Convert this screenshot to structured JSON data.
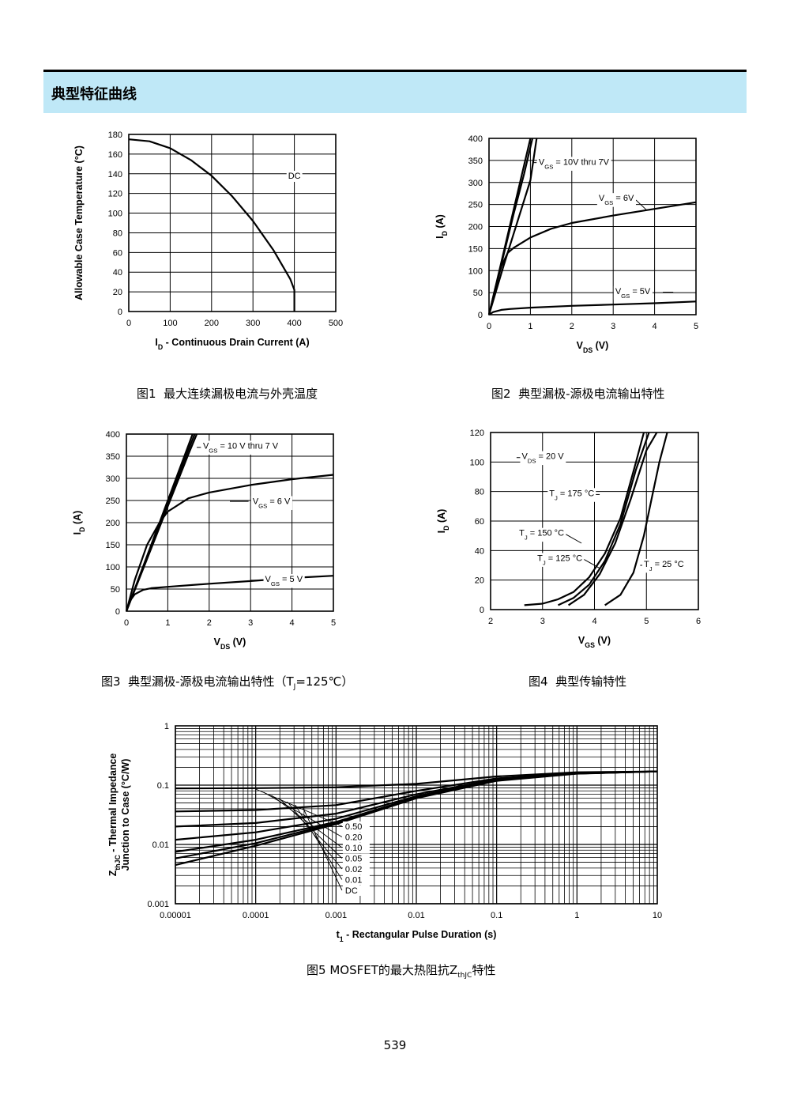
{
  "section": {
    "title": "典型特征曲线"
  },
  "page_number": "539",
  "chart_data": [
    {
      "id": "fig1",
      "type": "line",
      "caption_prefix": "图1",
      "caption": "最大连续漏极电流与外壳温度",
      "xlabel_main": "I",
      "xlabel_sub": "D",
      "xlabel_rest": " - Continuous Drain Current (A)",
      "ylabel_main": "Allowable Case Temperature (°C)",
      "xlim": [
        0,
        500
      ],
      "ylim": [
        0,
        180
      ],
      "xticks": [
        0,
        100,
        200,
        300,
        400,
        500
      ],
      "yticks": [
        0,
        20,
        40,
        60,
        80,
        100,
        120,
        140,
        160,
        180
      ],
      "xticklabels": [
        "0",
        "100",
        "200",
        "300",
        "400",
        "500"
      ],
      "yticklabels": [
        "0",
        "20",
        "40",
        "60",
        "80",
        "100",
        "120",
        "140",
        "160",
        "180"
      ],
      "grid": true,
      "series": [
        {
          "x": [
            0,
            50,
            100,
            150,
            200,
            250,
            300,
            350,
            390,
            400,
            400
          ],
          "y": [
            175,
            173,
            166,
            154,
            138,
            117,
            92,
            62,
            33,
            22,
            0
          ]
        }
      ],
      "annotations": [
        {
          "text": "DC",
          "sub": "",
          "tail": "",
          "x": 385,
          "y": 135,
          "lx1": 0,
          "ly1": 0,
          "lx2": 0,
          "ly2": 0
        }
      ]
    },
    {
      "id": "fig2",
      "type": "line",
      "caption_prefix": "图2",
      "caption": "典型漏极-源极电流输出特性",
      "xlabel_main": "V",
      "xlabel_sub": "DS",
      "xlabel_rest": " (V)",
      "ylabel_main": "I",
      "ylabel_sub": "D",
      "ylabel_rest": " (A)",
      "xlim": [
        0,
        5
      ],
      "ylim": [
        0,
        400
      ],
      "xticks": [
        0,
        1,
        2,
        3,
        4,
        5
      ],
      "yticks": [
        0,
        50,
        100,
        150,
        200,
        250,
        300,
        350,
        400
      ],
      "xticklabels": [
        "0",
        "1",
        "2",
        "3",
        "4",
        "5"
      ],
      "yticklabels": [
        "0",
        "50",
        "100",
        "150",
        "200",
        "250",
        "300",
        "350",
        "400"
      ],
      "grid": true,
      "series": [
        {
          "x": [
            0,
            0.3,
            0.6,
            0.85,
            1.0
          ],
          "y": [
            0,
            120,
            240,
            340,
            400
          ]
        },
        {
          "x": [
            0,
            0.3,
            0.6,
            0.85,
            1.05
          ],
          "y": [
            0,
            115,
            230,
            320,
            400
          ]
        },
        {
          "x": [
            0,
            0.35,
            0.7,
            1.0,
            1.15
          ],
          "y": [
            0,
            110,
            215,
            305,
            400
          ]
        },
        {
          "x": [
            0,
            0.15,
            0.3,
            0.45,
            0.6,
            1,
            1.5,
            2,
            3,
            4,
            5
          ],
          "y": [
            0,
            60,
            110,
            140,
            152,
            175,
            195,
            208,
            225,
            240,
            255
          ]
        },
        {
          "x": [
            0,
            0.1,
            0.3,
            0.5,
            1,
            2,
            3,
            4,
            5
          ],
          "y": [
            0,
            6,
            11,
            13,
            16,
            20,
            23,
            26,
            30
          ]
        }
      ],
      "annotations": [
        {
          "text": "V",
          "sub": "GS",
          "tail": " = 10V thru 7V",
          "x": 1.2,
          "y": 340,
          "lx1": 1.05,
          "ly1": 345,
          "lx2": 1.15,
          "ly2": 345
        },
        {
          "text": "V",
          "sub": "GS",
          "tail": " = 6V",
          "x": 2.65,
          "y": 258,
          "lx1": 3.55,
          "ly1": 260,
          "lx2": 3.8,
          "ly2": 238
        },
        {
          "text": "V",
          "sub": "GS",
          "tail": " = 5V",
          "x": 3.05,
          "y": 47,
          "lx1": 4.2,
          "ly1": 51,
          "lx2": 4.45,
          "ly2": 51
        }
      ]
    },
    {
      "id": "fig3",
      "type": "line",
      "caption_prefix": "图3",
      "caption": "典型漏极-源极电流输出特性（T",
      "caption_sub": "J",
      "caption_tail": "=125℃）",
      "xlabel_main": "V",
      "xlabel_sub": "DS",
      "xlabel_rest": " (V)",
      "ylabel_main": "I",
      "ylabel_sub": "D",
      "ylabel_rest": " (A)",
      "xlim": [
        0,
        5
      ],
      "ylim": [
        0,
        400
      ],
      "xticks": [
        0,
        1,
        2,
        3,
        4,
        5
      ],
      "yticks": [
        0,
        50,
        100,
        150,
        200,
        250,
        300,
        350,
        400
      ],
      "xticklabels": [
        "0",
        "1",
        "2",
        "3",
        "4",
        "5"
      ],
      "yticklabels": [
        "0",
        "50",
        "100",
        "150",
        "200",
        "250",
        "300",
        "350",
        "400"
      ],
      "grid": true,
      "series": [
        {
          "x": [
            0,
            0.5,
            1.0,
            1.5,
            1.6
          ],
          "y": [
            0,
            125,
            250,
            375,
            400
          ]
        },
        {
          "x": [
            0,
            0.5,
            1.0,
            1.5,
            1.65
          ],
          "y": [
            0,
            122,
            245,
            365,
            400
          ]
        },
        {
          "x": [
            0,
            0.5,
            1.0,
            1.5,
            1.7
          ],
          "y": [
            0,
            118,
            237,
            355,
            400
          ]
        },
        {
          "x": [
            0,
            0.2,
            0.5,
            0.8,
            1.0,
            1.5,
            2,
            3,
            4,
            5
          ],
          "y": [
            0,
            70,
            150,
            200,
            225,
            255,
            268,
            285,
            298,
            308
          ]
        },
        {
          "x": [
            0,
            0.1,
            0.2,
            0.4,
            0.6,
            1,
            2,
            3,
            4,
            5
          ],
          "y": [
            0,
            25,
            38,
            48,
            52,
            55,
            62,
            68,
            75,
            80
          ]
        }
      ],
      "annotations": [
        {
          "text": "V",
          "sub": "GS",
          "tail": " = 10 V thru 7 V",
          "x": 1.85,
          "y": 367,
          "lx1": 1.7,
          "ly1": 370,
          "lx2": 1.8,
          "ly2": 370
        },
        {
          "text": "V",
          "sub": "GS",
          "tail": " = 6 V",
          "x": 3.05,
          "y": 242,
          "lx1": 2.5,
          "ly1": 248,
          "lx2": 2.95,
          "ly2": 248
        },
        {
          "text": "V",
          "sub": "GS",
          "tail": " = 5 V",
          "x": 3.35,
          "y": 66,
          "lx1": 3.0,
          "ly1": 70,
          "lx2": 3.3,
          "ly2": 70
        }
      ]
    },
    {
      "id": "fig4",
      "type": "line",
      "caption_prefix": "图4",
      "caption": "典型传输特性",
      "xlabel_main": "V",
      "xlabel_sub": "GS",
      "xlabel_rest": " (V)",
      "ylabel_main": "I",
      "ylabel_sub": "D",
      "ylabel_rest": " (A)",
      "xlim": [
        2,
        6
      ],
      "ylim": [
        0,
        120
      ],
      "xticks": [
        2,
        3,
        4,
        5,
        6
      ],
      "yticks": [
        0,
        20,
        40,
        60,
        80,
        100,
        120
      ],
      "xticklabels": [
        "2",
        "3",
        "4",
        "5",
        "6"
      ],
      "yticklabels": [
        "0",
        "20",
        "40",
        "60",
        "80",
        "100",
        "120"
      ],
      "grid": true,
      "series": [
        {
          "x": [
            2.65,
            3.0,
            3.3,
            3.6,
            3.9,
            4.2,
            4.5,
            4.8,
            4.95
          ],
          "y": [
            3,
            4,
            7,
            12,
            22,
            38,
            62,
            100,
            120
          ]
        },
        {
          "x": [
            3.3,
            3.6,
            3.9,
            4.2,
            4.5,
            4.8,
            5.05
          ],
          "y": [
            3,
            8,
            17,
            33,
            58,
            95,
            120
          ]
        },
        {
          "x": [
            3.5,
            3.8,
            4.1,
            4.4,
            4.7,
            5.0,
            5.2
          ],
          "y": [
            3,
            10,
            24,
            45,
            75,
            108,
            120
          ]
        },
        {
          "x": [
            4.2,
            4.5,
            4.75,
            4.95,
            5.1,
            5.25,
            5.4
          ],
          "y": [
            3,
            10,
            25,
            50,
            75,
            100,
            120
          ]
        }
      ],
      "annotations": [
        {
          "text": "V",
          "sub": "DS",
          "tail": " = 20 V",
          "x": 2.6,
          "y": 102,
          "lx1": 2.5,
          "ly1": 103,
          "lx2": 2.6,
          "ly2": 103
        },
        {
          "text": "T",
          "sub": "J",
          "tail": " = 175 °C",
          "x": 3.13,
          "y": 77,
          "lx1": 4.0,
          "ly1": 78,
          "lx2": 4.1,
          "ly2": 78
        },
        {
          "text": "T",
          "sub": "J",
          "tail": " = 150 °C",
          "x": 2.55,
          "y": 50,
          "lx1": 3.45,
          "ly1": 51,
          "lx2": 3.75,
          "ly2": 45
        },
        {
          "text": "T",
          "sub": "J",
          "tail": " = 125 °C",
          "x": 2.9,
          "y": 33,
          "lx1": 3.8,
          "ly1": 34,
          "lx2": 4.1,
          "ly2": 28
        },
        {
          "text": "T",
          "sub": "J",
          "tail": " = 25 °C",
          "x": 4.95,
          "y": 29,
          "lx1": 4.88,
          "ly1": 30,
          "lx2": 4.95,
          "ly2": 30
        }
      ]
    },
    {
      "id": "fig5",
      "type": "line",
      "xscale": "log",
      "yscale": "log",
      "caption_prefix": "图5",
      "caption": "MOSFET的最大热阻抗Z",
      "caption_sub": "thJC",
      "caption_tail": "特性",
      "xlabel_main": "t",
      "xlabel_sub": "1",
      "xlabel_rest": " - Rectangular Pulse Duration (s)",
      "ylabel_main": "Z",
      "ylabel_sub": "thJC",
      "ylabel_rest": " - Thermal Impedance",
      "ylabel_line2": "Junction to Case (°C/W)",
      "xlim": [
        1e-05,
        10
      ],
      "ylim": [
        0.001,
        1
      ],
      "xticks": [
        1e-05,
        0.0001,
        0.001,
        0.01,
        0.1,
        1,
        10
      ],
      "yticks": [
        0.001,
        0.01,
        0.1,
        1
      ],
      "xticklabels": [
        "0.00001",
        "0.0001",
        "0.001",
        "0.01",
        "0.1",
        "1",
        "10"
      ],
      "yticklabels": [
        "0.001",
        "0.01",
        "0.1",
        "1"
      ],
      "grid": true,
      "legend_labels": [
        "0.50",
        "0.20",
        "0.10",
        "0.05",
        "0.02",
        "0.01",
        "DC"
      ],
      "series": [
        {
          "name": "0.50",
          "x": [
            1e-05,
            0.0001,
            0.001,
            0.01,
            0.1,
            1,
            10
          ],
          "y": [
            0.088,
            0.089,
            0.092,
            0.105,
            0.14,
            0.165,
            0.17
          ]
        },
        {
          "name": "0.20",
          "x": [
            1e-05,
            0.0001,
            0.001,
            0.01,
            0.1,
            1,
            10
          ],
          "y": [
            0.036,
            0.038,
            0.046,
            0.08,
            0.13,
            0.162,
            0.17
          ]
        },
        {
          "name": "0.10",
          "x": [
            1e-05,
            0.0001,
            0.001,
            0.01,
            0.1,
            1,
            10
          ],
          "y": [
            0.02,
            0.023,
            0.033,
            0.07,
            0.125,
            0.16,
            0.17
          ]
        },
        {
          "name": "0.05",
          "x": [
            1e-05,
            0.0001,
            0.001,
            0.01,
            0.1,
            1,
            10
          ],
          "y": [
            0.012,
            0.016,
            0.027,
            0.065,
            0.122,
            0.158,
            0.17
          ]
        },
        {
          "name": "0.02",
          "x": [
            1e-05,
            0.0001,
            0.001,
            0.01,
            0.1,
            1,
            10
          ],
          "y": [
            0.0075,
            0.012,
            0.024,
            0.062,
            0.12,
            0.157,
            0.17
          ]
        },
        {
          "name": "0.01",
          "x": [
            1e-05,
            0.0001,
            0.001,
            0.01,
            0.1,
            1,
            10
          ],
          "y": [
            0.0058,
            0.0105,
            0.023,
            0.061,
            0.12,
            0.157,
            0.17
          ]
        },
        {
          "name": "DC",
          "x": [
            1e-05,
            0.0001,
            0.001,
            0.01,
            0.1,
            1,
            10
          ],
          "y": [
            0.0045,
            0.0095,
            0.022,
            0.06,
            0.118,
            0.156,
            0.17
          ]
        }
      ]
    }
  ]
}
